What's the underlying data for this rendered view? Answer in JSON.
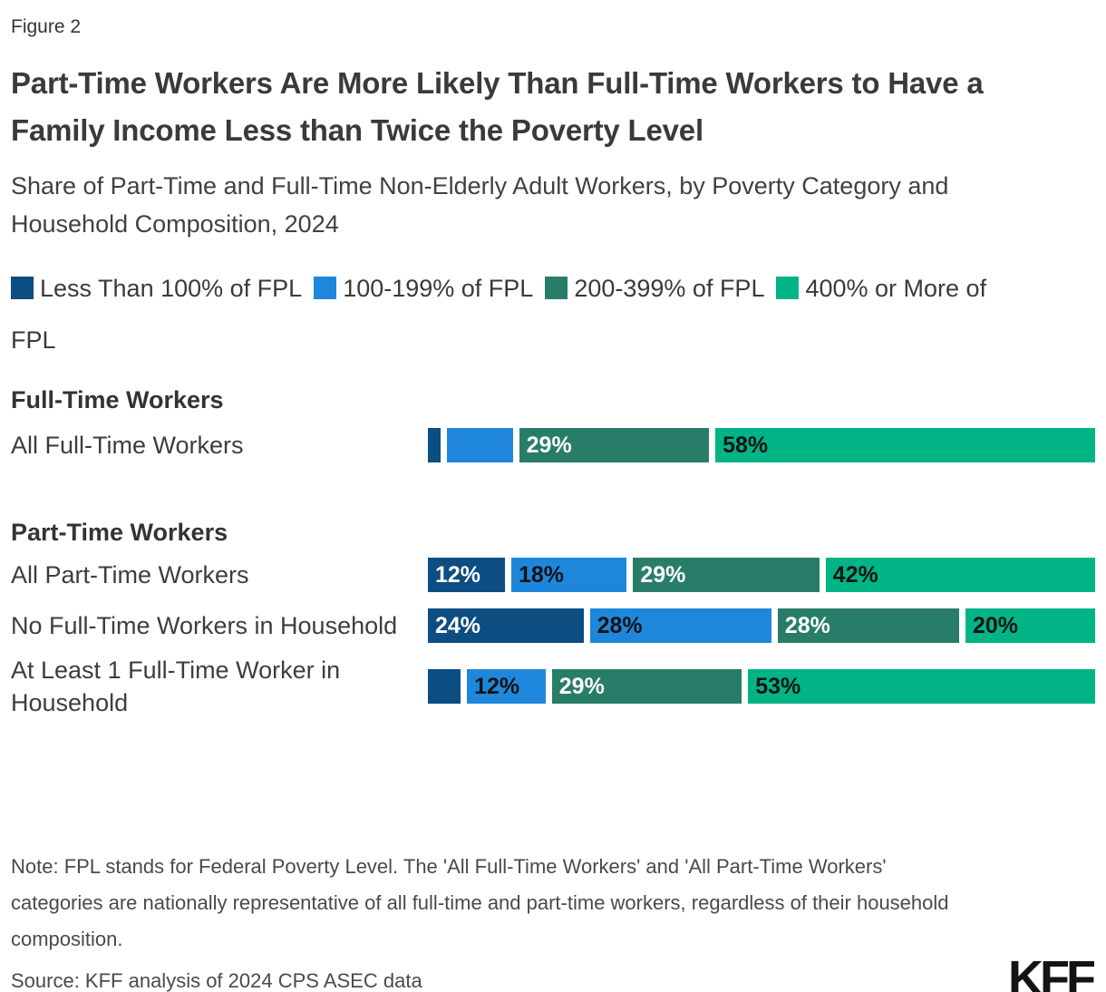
{
  "figure_label": "Figure 2",
  "title": "Part-Time Workers Are More Likely Than Full-Time Workers to Have a Family Income Less than Twice the Poverty Level",
  "subtitle": "Share of Part-Time and Full-Time Non-Elderly Adult Workers, by Poverty Category and Household Composition, 2024",
  "note": "Note: FPL stands for Federal Poverty Level. The 'All Full-Time Workers' and 'All Part-Time Workers' categories are nationally representative of all full-time and part-time workers, regardless of their household composition.",
  "source": "Source: KFF analysis of 2024 CPS ASEC data",
  "logo_text": "KFF",
  "chart_data": {
    "type": "bar",
    "variant": "horizontal-stacked",
    "unit": "percent",
    "xlim": [
      0,
      100
    ],
    "grid": false,
    "legend_position": "top",
    "categories": [
      "Less Than 100% of FPL",
      "100-199% of FPL",
      "200-399% of FPL",
      "400% or More of FPL"
    ],
    "colors": [
      "#0C4D82",
      "#1F87DB",
      "#287D69",
      "#00B485"
    ],
    "value_label_colors": [
      "#ffffff",
      "#141414",
      "#ffffff",
      "#141414"
    ],
    "groups": [
      {
        "heading": "Full-Time Workers",
        "rows": [
          {
            "label": "All Full-Time Workers",
            "values": [
              2,
              10,
              29,
              58
            ],
            "value_labels": [
              "",
              "",
              "29%",
              "58%"
            ]
          }
        ]
      },
      {
        "heading": "Part-Time Workers",
        "rows": [
          {
            "label": "All Part-Time Workers",
            "values": [
              12,
              18,
              29,
              42
            ],
            "value_labels": [
              "12%",
              "18%",
              "29%",
              "42%"
            ]
          },
          {
            "label": "No Full-Time Workers in Household",
            "values": [
              24,
              28,
              28,
              20
            ],
            "value_labels": [
              "24%",
              "28%",
              "28%",
              "20%"
            ]
          },
          {
            "label": "At Least 1 Full-Time Worker in Household",
            "values": [
              5,
              12,
              29,
              53
            ],
            "value_labels": [
              "",
              "12%",
              "29%",
              "53%"
            ]
          }
        ]
      }
    ]
  }
}
